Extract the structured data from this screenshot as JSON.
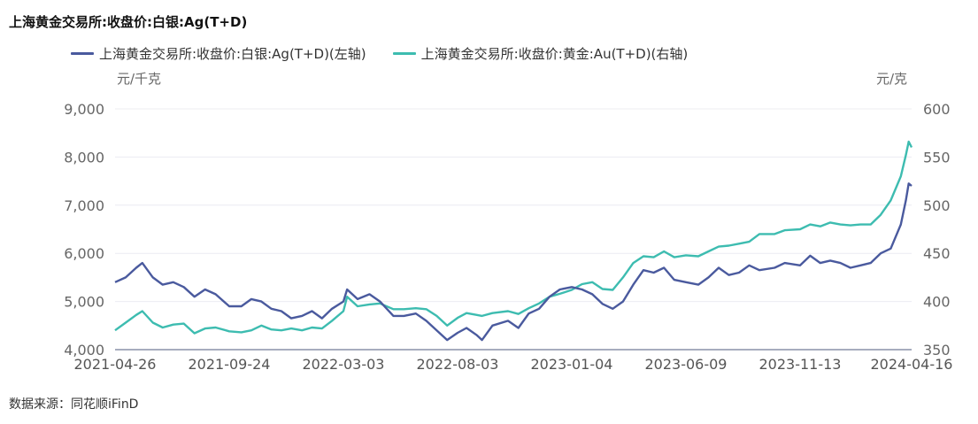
{
  "title": "上海黄金交易所:收盘价:白银:Ag(T+D)",
  "source": "数据来源：同花顺iFinD",
  "chart_data": {
    "type": "line",
    "title": "上海黄金交易所:收盘价:白银:Ag(T+D)",
    "left_axis": {
      "unit": "元/千克",
      "range": [
        4000,
        9000
      ],
      "ticks": [
        "4,000",
        "5,000",
        "6,000",
        "7,000",
        "8,000",
        "9,000"
      ]
    },
    "right_axis": {
      "unit": "元/克",
      "range": [
        350,
        600
      ],
      "ticks": [
        "350",
        "400",
        "450",
        "500",
        "550",
        "600"
      ]
    },
    "x_tick_labels": [
      "2021-04-26",
      "2021-09-24",
      "2022-03-03",
      "2022-08-03",
      "2023-01-04",
      "2023-06-09",
      "2023-11-13",
      "2024-04-16"
    ],
    "grid": true,
    "legend_position": "top",
    "series": [
      {
        "name": "上海黄金交易所:收盘价:白银:Ag(T+D)(左轴)",
        "axis": "left",
        "color": "#4a5a9e",
        "points": [
          [
            "2021-04-26",
            5400
          ],
          [
            "2021-05-10",
            5500
          ],
          [
            "2021-05-24",
            5700
          ],
          [
            "2021-06-01",
            5800
          ],
          [
            "2021-06-15",
            5500
          ],
          [
            "2021-06-28",
            5350
          ],
          [
            "2021-07-12",
            5400
          ],
          [
            "2021-07-26",
            5300
          ],
          [
            "2021-08-09",
            5100
          ],
          [
            "2021-08-23",
            5250
          ],
          [
            "2021-09-06",
            5150
          ],
          [
            "2021-09-24",
            4900
          ],
          [
            "2021-10-11",
            4900
          ],
          [
            "2021-10-25",
            5050
          ],
          [
            "2021-11-08",
            5000
          ],
          [
            "2021-11-22",
            4850
          ],
          [
            "2021-12-06",
            4800
          ],
          [
            "2021-12-20",
            4650
          ],
          [
            "2022-01-04",
            4700
          ],
          [
            "2022-01-18",
            4800
          ],
          [
            "2022-02-01",
            4650
          ],
          [
            "2022-02-15",
            4850
          ],
          [
            "2022-03-03",
            5000
          ],
          [
            "2022-03-08",
            5250
          ],
          [
            "2022-03-22",
            5050
          ],
          [
            "2022-04-07",
            5150
          ],
          [
            "2022-04-21",
            5000
          ],
          [
            "2022-05-09",
            4700
          ],
          [
            "2022-05-23",
            4700
          ],
          [
            "2022-06-08",
            4750
          ],
          [
            "2022-06-22",
            4600
          ],
          [
            "2022-07-06",
            4400
          ],
          [
            "2022-07-20",
            4200
          ],
          [
            "2022-08-03",
            4350
          ],
          [
            "2022-08-15",
            4450
          ],
          [
            "2022-08-29",
            4300
          ],
          [
            "2022-09-05",
            4200
          ],
          [
            "2022-09-19",
            4500
          ],
          [
            "2022-10-10",
            4600
          ],
          [
            "2022-10-24",
            4450
          ],
          [
            "2022-11-07",
            4750
          ],
          [
            "2022-11-21",
            4850
          ],
          [
            "2022-12-05",
            5100
          ],
          [
            "2022-12-19",
            5250
          ],
          [
            "2023-01-04",
            5300
          ],
          [
            "2023-01-18",
            5250
          ],
          [
            "2023-02-01",
            5150
          ],
          [
            "2023-02-15",
            4950
          ],
          [
            "2023-03-01",
            4850
          ],
          [
            "2023-03-15",
            5000
          ],
          [
            "2023-03-29",
            5350
          ],
          [
            "2023-04-12",
            5650
          ],
          [
            "2023-04-26",
            5600
          ],
          [
            "2023-05-10",
            5700
          ],
          [
            "2023-05-24",
            5450
          ],
          [
            "2023-06-09",
            5400
          ],
          [
            "2023-06-26",
            5350
          ],
          [
            "2023-07-10",
            5500
          ],
          [
            "2023-07-24",
            5700
          ],
          [
            "2023-08-07",
            5550
          ],
          [
            "2023-08-21",
            5600
          ],
          [
            "2023-09-04",
            5750
          ],
          [
            "2023-09-18",
            5650
          ],
          [
            "2023-10-09",
            5700
          ],
          [
            "2023-10-23",
            5800
          ],
          [
            "2023-11-13",
            5750
          ],
          [
            "2023-11-27",
            5950
          ],
          [
            "2023-12-11",
            5800
          ],
          [
            "2023-12-25",
            5850
          ],
          [
            "2024-01-08",
            5800
          ],
          [
            "2024-01-22",
            5700
          ],
          [
            "2024-02-05",
            5750
          ],
          [
            "2024-02-19",
            5800
          ],
          [
            "2024-03-04",
            6000
          ],
          [
            "2024-03-18",
            6100
          ],
          [
            "2024-04-01",
            6600
          ],
          [
            "2024-04-08",
            7100
          ],
          [
            "2024-04-12",
            7450
          ],
          [
            "2024-04-16",
            7400
          ]
        ]
      },
      {
        "name": "上海黄金交易所:收盘价:黄金:Au(T+D)(右轴)",
        "axis": "right",
        "color": "#3dbcb0",
        "points": [
          [
            "2021-04-26",
            370
          ],
          [
            "2021-05-10",
            378
          ],
          [
            "2021-05-24",
            386
          ],
          [
            "2021-06-01",
            390
          ],
          [
            "2021-06-15",
            378
          ],
          [
            "2021-06-28",
            373
          ],
          [
            "2021-07-12",
            376
          ],
          [
            "2021-07-26",
            377
          ],
          [
            "2021-08-09",
            367
          ],
          [
            "2021-08-23",
            372
          ],
          [
            "2021-09-06",
            373
          ],
          [
            "2021-09-24",
            369
          ],
          [
            "2021-10-11",
            368
          ],
          [
            "2021-10-25",
            370
          ],
          [
            "2021-11-08",
            375
          ],
          [
            "2021-11-22",
            371
          ],
          [
            "2021-12-06",
            370
          ],
          [
            "2021-12-20",
            372
          ],
          [
            "2022-01-04",
            370
          ],
          [
            "2022-01-18",
            373
          ],
          [
            "2022-02-01",
            372
          ],
          [
            "2022-02-15",
            380
          ],
          [
            "2022-03-03",
            390
          ],
          [
            "2022-03-08",
            405
          ],
          [
            "2022-03-22",
            395
          ],
          [
            "2022-04-07",
            397
          ],
          [
            "2022-04-21",
            398
          ],
          [
            "2022-05-09",
            392
          ],
          [
            "2022-05-23",
            392
          ],
          [
            "2022-06-08",
            393
          ],
          [
            "2022-06-22",
            392
          ],
          [
            "2022-07-06",
            385
          ],
          [
            "2022-07-20",
            375
          ],
          [
            "2022-08-03",
            383
          ],
          [
            "2022-08-15",
            388
          ],
          [
            "2022-08-29",
            386
          ],
          [
            "2022-09-05",
            385
          ],
          [
            "2022-09-19",
            388
          ],
          [
            "2022-10-10",
            390
          ],
          [
            "2022-10-24",
            387
          ],
          [
            "2022-11-07",
            393
          ],
          [
            "2022-11-21",
            398
          ],
          [
            "2022-12-05",
            405
          ],
          [
            "2022-12-19",
            408
          ],
          [
            "2023-01-04",
            412
          ],
          [
            "2023-01-18",
            418
          ],
          [
            "2023-02-01",
            420
          ],
          [
            "2023-02-15",
            413
          ],
          [
            "2023-03-01",
            412
          ],
          [
            "2023-03-15",
            425
          ],
          [
            "2023-03-29",
            440
          ],
          [
            "2023-04-12",
            447
          ],
          [
            "2023-04-26",
            446
          ],
          [
            "2023-05-10",
            452
          ],
          [
            "2023-05-24",
            446
          ],
          [
            "2023-06-09",
            448
          ],
          [
            "2023-06-26",
            447
          ],
          [
            "2023-07-10",
            452
          ],
          [
            "2023-07-24",
            457
          ],
          [
            "2023-08-07",
            458
          ],
          [
            "2023-08-21",
            460
          ],
          [
            "2023-09-04",
            462
          ],
          [
            "2023-09-18",
            470
          ],
          [
            "2023-10-09",
            470
          ],
          [
            "2023-10-23",
            474
          ],
          [
            "2023-11-13",
            475
          ],
          [
            "2023-11-27",
            480
          ],
          [
            "2023-12-11",
            478
          ],
          [
            "2023-12-25",
            482
          ],
          [
            "2024-01-08",
            480
          ],
          [
            "2024-01-22",
            479
          ],
          [
            "2024-02-05",
            480
          ],
          [
            "2024-02-19",
            480
          ],
          [
            "2024-03-04",
            490
          ],
          [
            "2024-03-18",
            505
          ],
          [
            "2024-04-01",
            530
          ],
          [
            "2024-04-08",
            552
          ],
          [
            "2024-04-12",
            566
          ],
          [
            "2024-04-16",
            560
          ]
        ]
      }
    ]
  }
}
